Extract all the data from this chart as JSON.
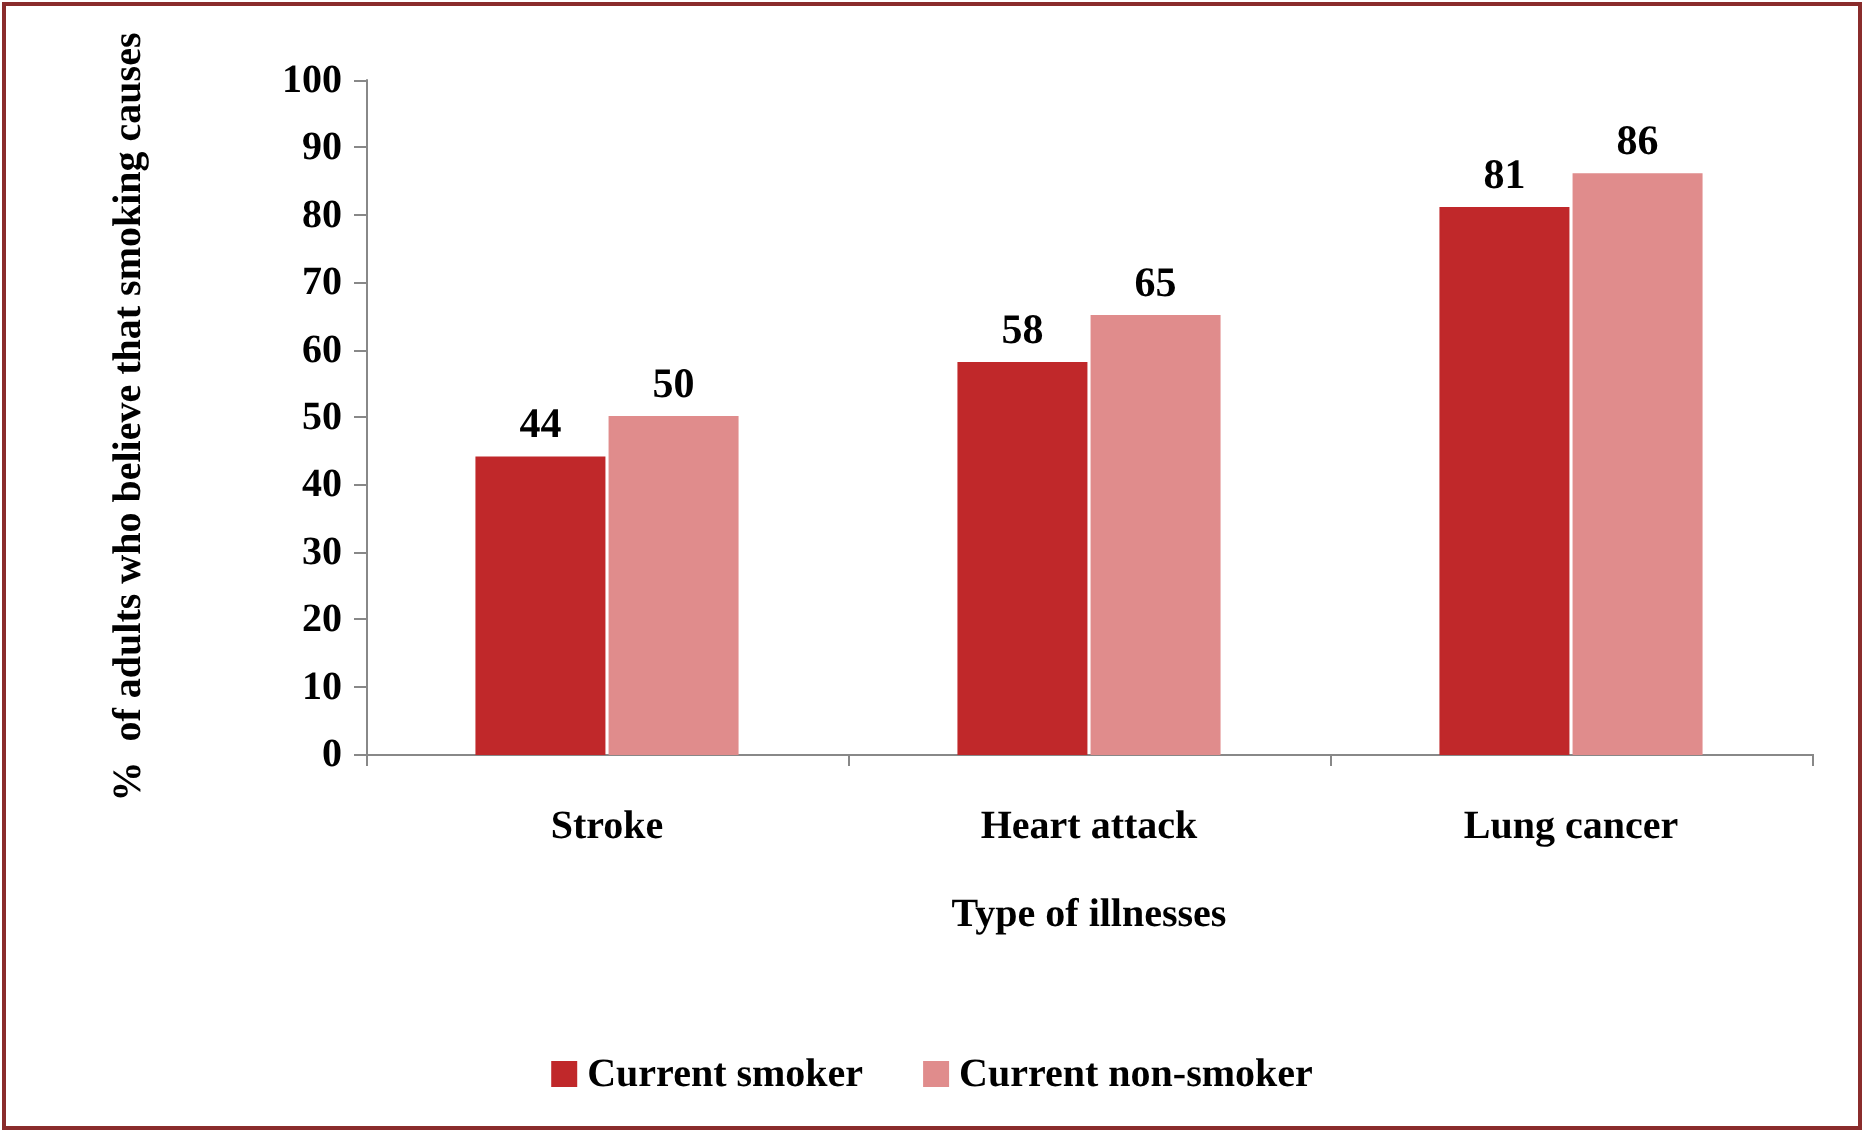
{
  "chart_data": {
    "type": "bar",
    "xlabel": "Type of illnesses",
    "ylabel": "%  of adults who believe that smoking causes",
    "categories": [
      "Stroke",
      "Heart attack",
      "Lung cancer"
    ],
    "series": [
      {
        "name": "Current smoker",
        "color": "#c0282a",
        "values": [
          44,
          58,
          81
        ]
      },
      {
        "name": "Current non-smoker",
        "color": "#e08c8c",
        "values": [
          50,
          65,
          86
        ]
      }
    ],
    "ylim": [
      0,
      100
    ],
    "yticks": [
      0,
      10,
      20,
      30,
      40,
      50,
      60,
      70,
      80,
      90,
      100
    ],
    "data_labels": true,
    "grid": false,
    "legend": "bottom"
  }
}
